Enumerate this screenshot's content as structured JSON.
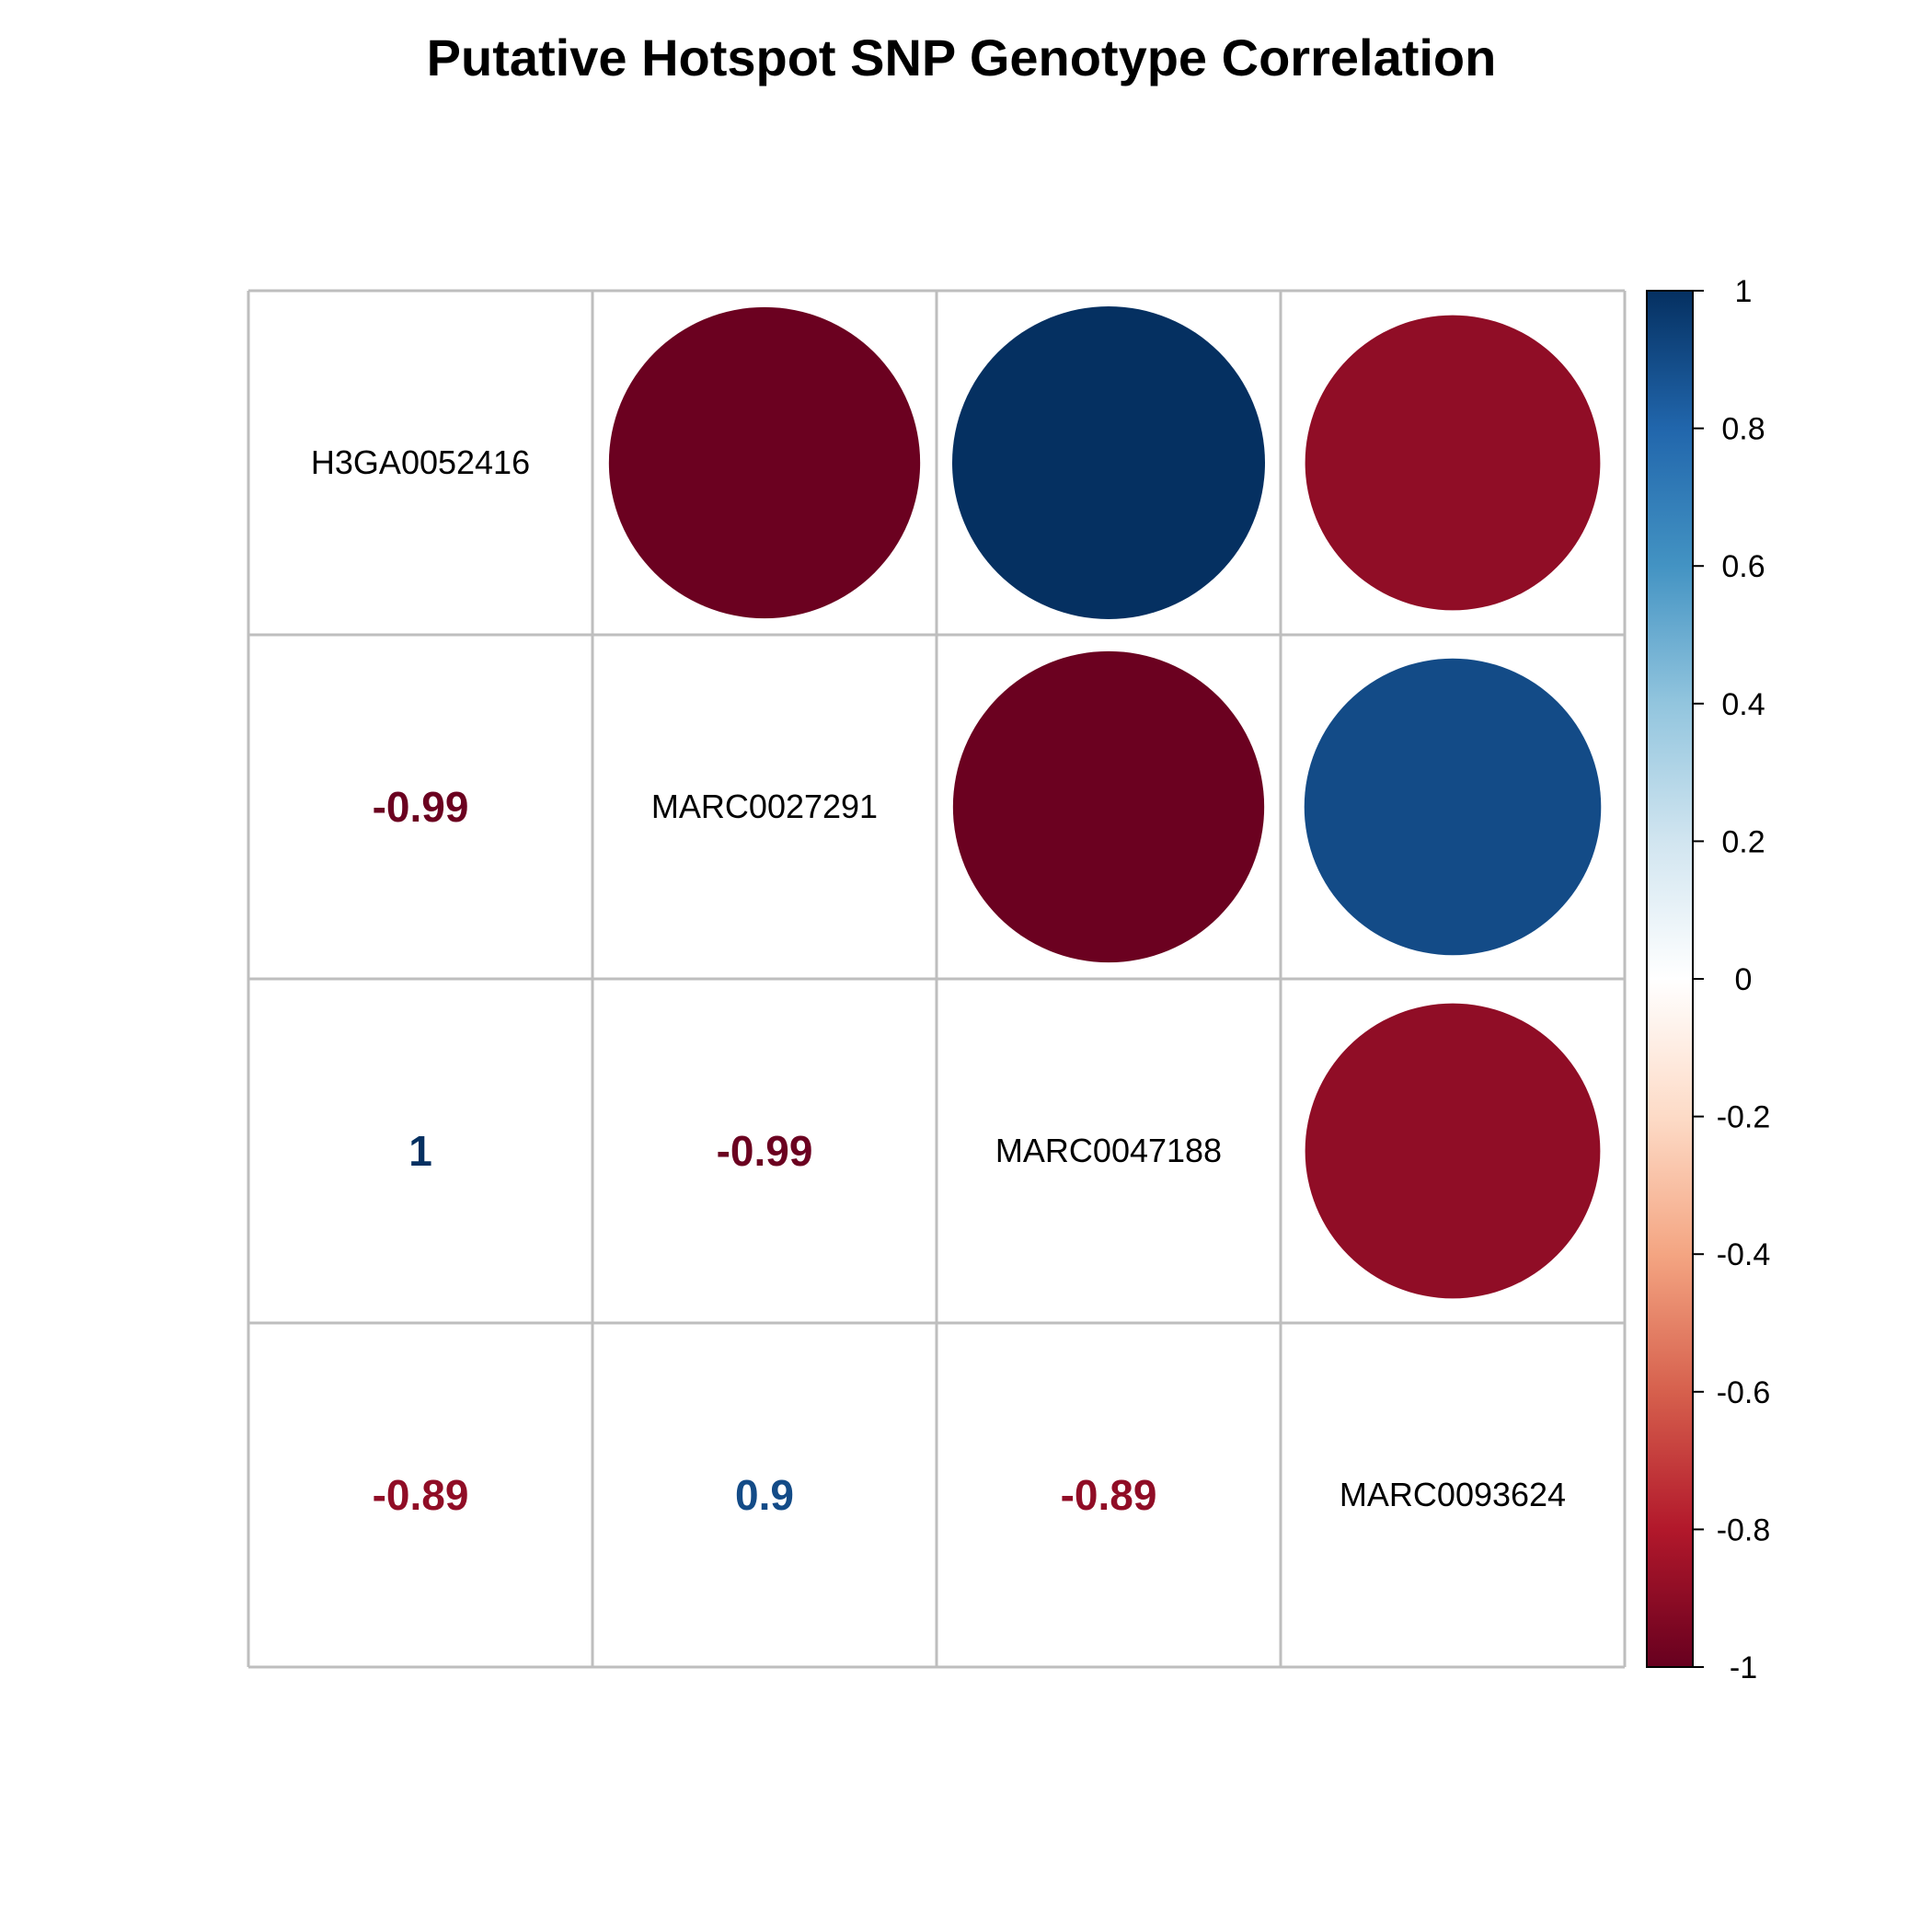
{
  "chart_data": {
    "type": "heatmap",
    "title": "Putative Hotspot SNP Genotype Correlation",
    "variables": [
      "H3GA0052416",
      "MARC0027291",
      "MARC0047188",
      "MARC0093624"
    ],
    "matrix": [
      [
        1,
        -0.99,
        1,
        -0.89
      ],
      [
        -0.99,
        1,
        -0.99,
        0.9
      ],
      [
        1,
        -0.99,
        1,
        -0.89
      ],
      [
        -0.89,
        0.9,
        -0.89,
        1
      ]
    ],
    "coefficient_labels": [
      {
        "row": 1,
        "col": 0,
        "text": "-0.99"
      },
      {
        "row": 2,
        "col": 0,
        "text": "1"
      },
      {
        "row": 2,
        "col": 1,
        "text": "-0.99"
      },
      {
        "row": 3,
        "col": 0,
        "text": "-0.89"
      },
      {
        "row": 3,
        "col": 1,
        "text": "0.9"
      },
      {
        "row": 3,
        "col": 2,
        "text": "-0.89"
      }
    ],
    "upper_triangle_method": "circle",
    "lower_triangle_method": "number",
    "diagonal_method": "label",
    "color_limits": [
      -1,
      1
    ],
    "color_stops": [
      "#67001F",
      "#B2182B",
      "#D6604D",
      "#F4A582",
      "#FDDBC7",
      "#FFFFFF",
      "#D1E5F0",
      "#92C5DE",
      "#4393C3",
      "#2166AC",
      "#053061"
    ],
    "legend": {
      "placement": "right",
      "ticks": [
        "1",
        "0.8",
        "0.6",
        "0.4",
        "0.2",
        "0",
        "-0.2",
        "-0.4",
        "-0.6",
        "-0.8",
        "-1"
      ],
      "tick_values": [
        1,
        0.8,
        0.6,
        0.4,
        0.2,
        0,
        -0.2,
        -0.4,
        -0.6,
        -0.8,
        -1
      ]
    },
    "grid": true
  }
}
